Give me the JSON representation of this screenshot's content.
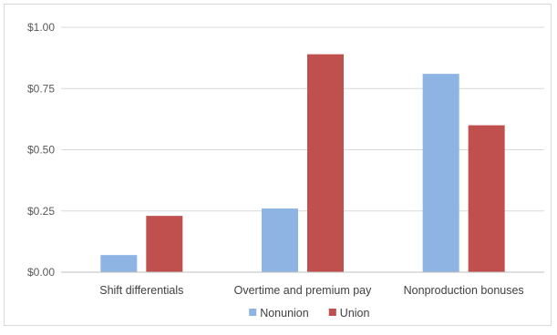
{
  "chart_data": {
    "type": "bar",
    "categories": [
      "Shift differentials",
      "Overtime and premium pay",
      "Nonproduction bonuses"
    ],
    "series": [
      {
        "name": "Nonunion",
        "values": [
          0.07,
          0.26,
          0.81
        ],
        "color": "#8eb4e3"
      },
      {
        "name": "Union",
        "values": [
          0.23,
          0.89,
          0.6
        ],
        "color": "#c0504d"
      }
    ],
    "ylim": [
      0,
      1.0
    ],
    "yticks": [
      0.0,
      0.25,
      0.5,
      0.75,
      1.0
    ],
    "ytick_labels": [
      "$0.00",
      "$0.25",
      "$0.50",
      "$0.75",
      "$1.00"
    ],
    "grid": true,
    "legend": "bottom-center",
    "colors": {
      "grid": "#d9d9d9",
      "axis": "#bfbfbf"
    }
  }
}
